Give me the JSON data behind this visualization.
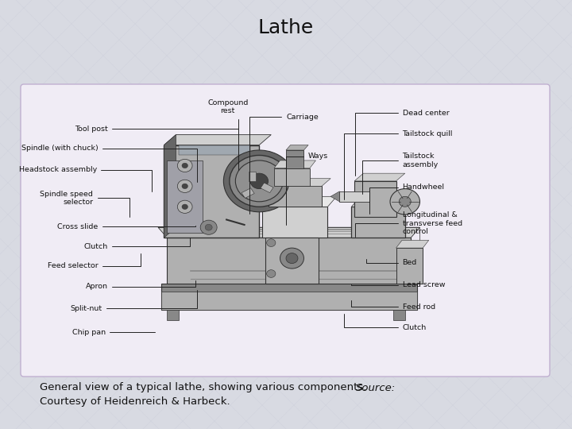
{
  "title": "Lathe",
  "title_fontsize": 18,
  "title_color": "#1a1a1a",
  "caption_normal": "General view of a typical lathe, showing various components.  ",
  "caption_italic": "Source:",
  "caption_line2": "Courtesy of Heidenreich & Harbeck.",
  "caption_fontsize": 9.5,
  "bg_color": "#d8dae2",
  "box_bg": "#f0ecf5",
  "box_edge": "#c0b0d0",
  "text_color": "#111111",
  "label_fontsize": 6.8,
  "label_color": "#111111"
}
